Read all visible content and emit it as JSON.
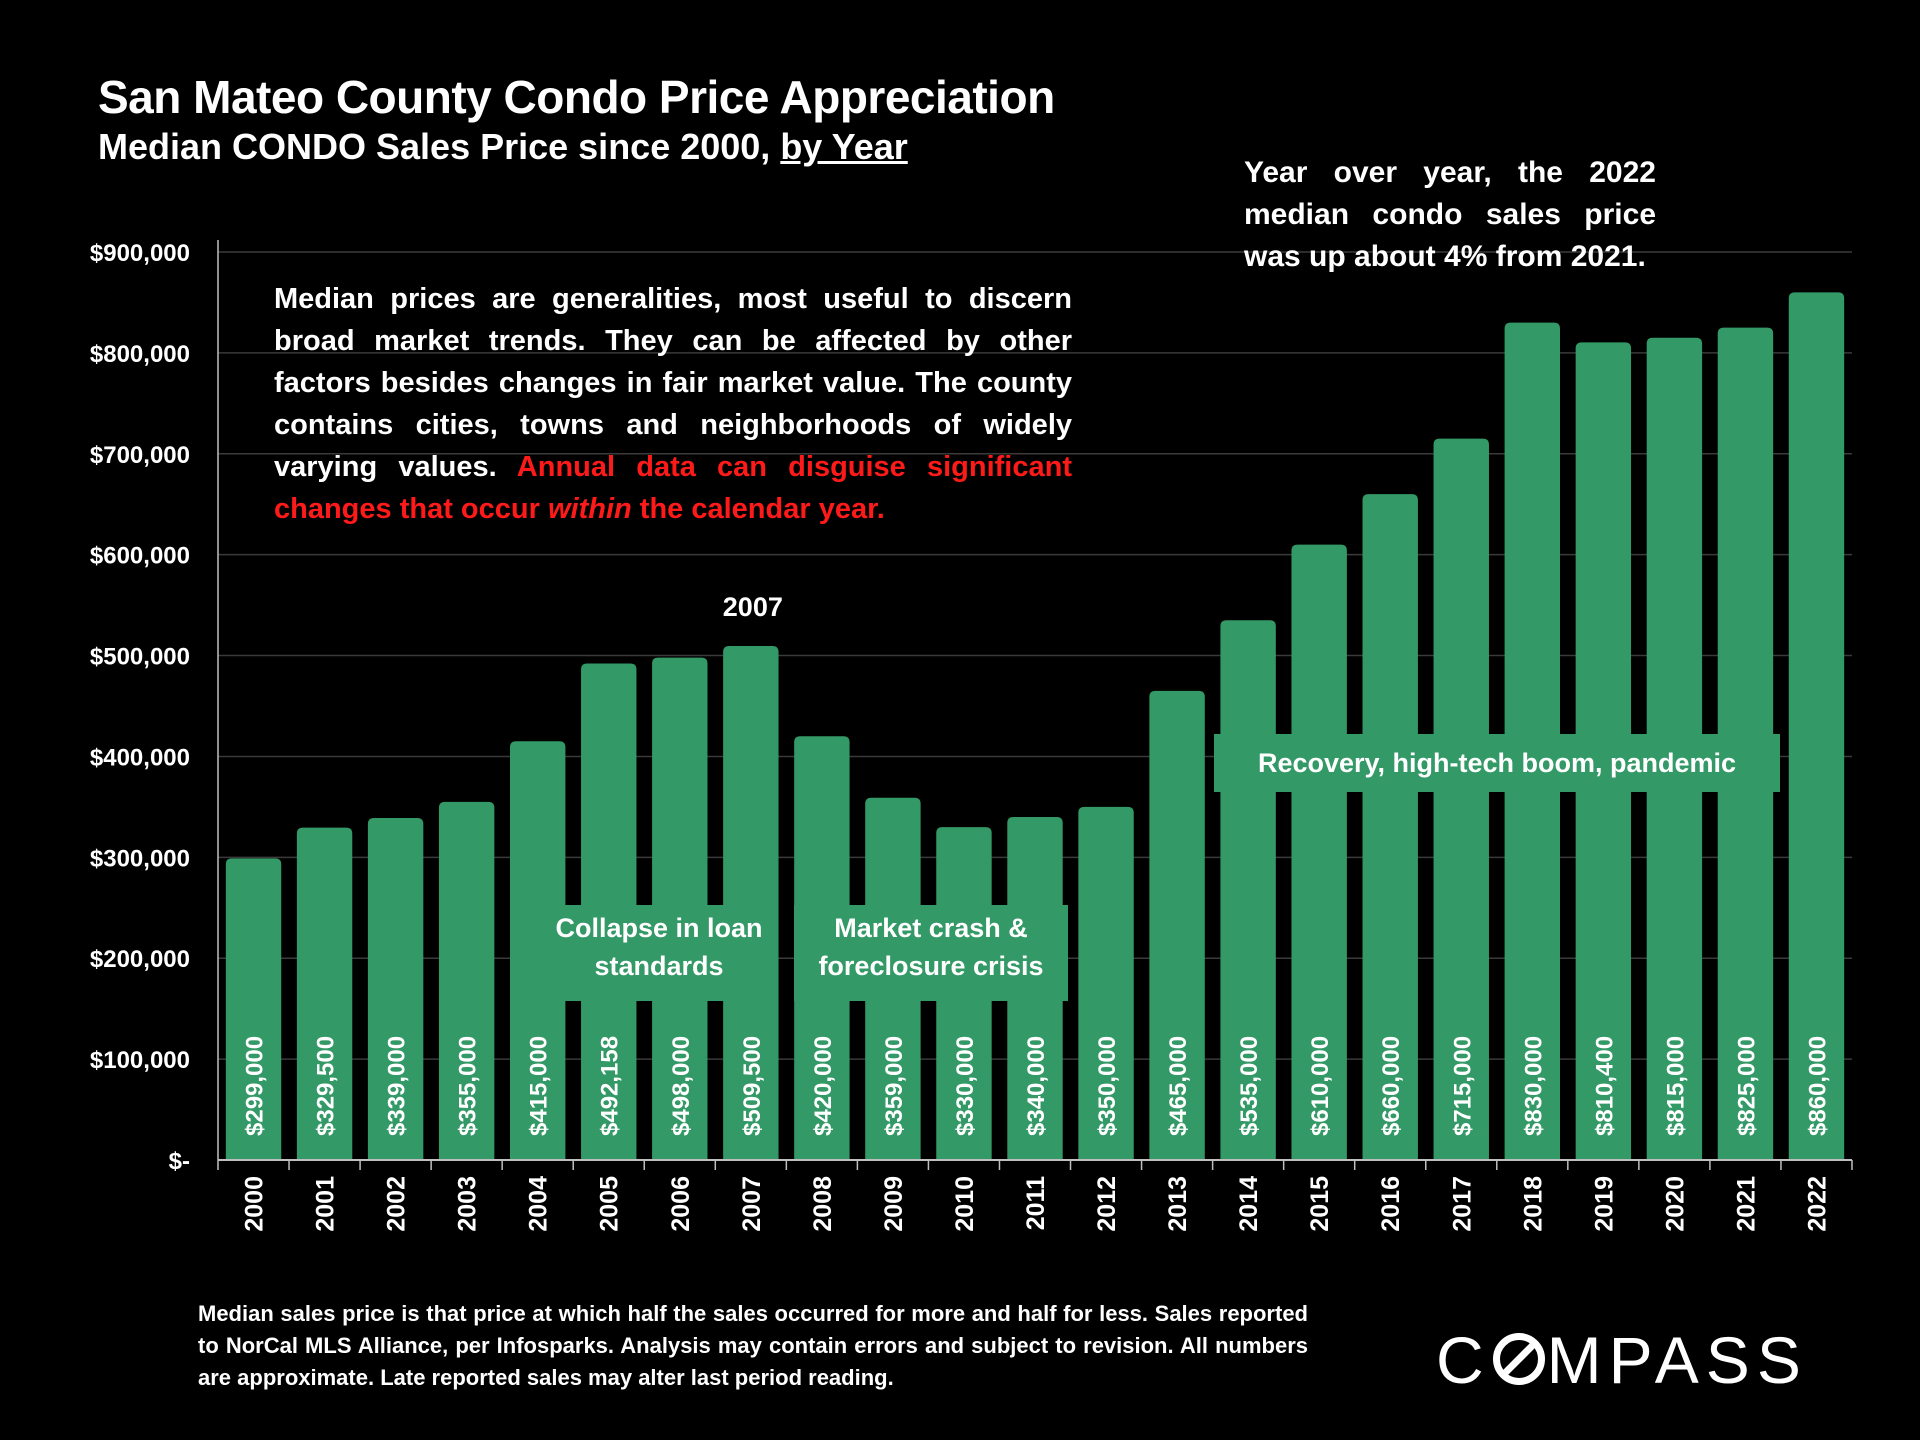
{
  "header": {
    "title": "San Mateo County Condo Price Appreciation",
    "subtitle_prefix": "Median CONDO Sales Price since 2000, ",
    "subtitle_underlined": "by Year"
  },
  "notes": {
    "yoy": "Year over year, the 2022 median condo sales price was up about 4% from 2021.",
    "generalities": "Median prices are generalities, most useful to discern broad market trends. They can be affected by other factors besides changes in fair market value. The county contains cities, towns and neighborhoods of widely varying values. ",
    "warning_a": "Annual data can disguise significant changes that occur ",
    "warning_em": "within",
    "warning_b": " the calendar year."
  },
  "annotations": {
    "collapse": "Collapse in loan standards",
    "crash": "Market crash & foreclosure crisis",
    "recovery": "Recovery, high-tech boom, pandemic",
    "peak_label": "2007"
  },
  "footnote": "Median sales price is that price at which half the sales occurred for more and half for less. Sales reported to NorCal MLS Alliance, per Infosparks. Analysis may contain errors and subject to revision. All numbers are approximate. Late reported sales may alter last period reading.",
  "logo": {
    "part1": "C",
    "part2": "MPASS"
  },
  "colors": {
    "bar": "#339966",
    "background": "#000000",
    "highlight": "#ff1a1a"
  },
  "chart_data": {
    "type": "bar",
    "title": "San Mateo County Condo Price Appreciation",
    "xlabel": "",
    "ylabel": "",
    "ylim": [
      0,
      900000
    ],
    "yticks": [
      0,
      100000,
      200000,
      300000,
      400000,
      500000,
      600000,
      700000,
      800000,
      900000
    ],
    "ytick_labels": [
      "$-",
      "$100,000",
      "$200,000",
      "$300,000",
      "$400,000",
      "$500,000",
      "$600,000",
      "$700,000",
      "$800,000",
      "$900,000"
    ],
    "categories": [
      "2000",
      "2001",
      "2002",
      "2003",
      "2004",
      "2005",
      "2006",
      "2007",
      "2008",
      "2009",
      "2010",
      "2011",
      "2012",
      "2013",
      "2014",
      "2015",
      "2016",
      "2017",
      "2018",
      "2019",
      "2020",
      "2021",
      "2022"
    ],
    "values": [
      299000,
      329500,
      339000,
      355000,
      415000,
      492158,
      498000,
      509500,
      420000,
      359000,
      330000,
      340000,
      350000,
      465000,
      535000,
      610000,
      660000,
      715000,
      830000,
      810400,
      815000,
      825000,
      860000
    ],
    "data_labels": [
      "$299,000",
      "$329,500",
      "$339,000",
      "$355,000",
      "$415,000",
      "$492,158",
      "$498,000",
      "$509,500",
      "$420,000",
      "$359,000",
      "$330,000",
      "$340,000",
      "$350,000",
      "$465,000",
      "$535,000",
      "$610,000",
      "$660,000",
      "$715,000",
      "$830,000",
      "$810,400",
      "$815,000",
      "$825,000",
      "$860,000"
    ],
    "grid": true
  }
}
